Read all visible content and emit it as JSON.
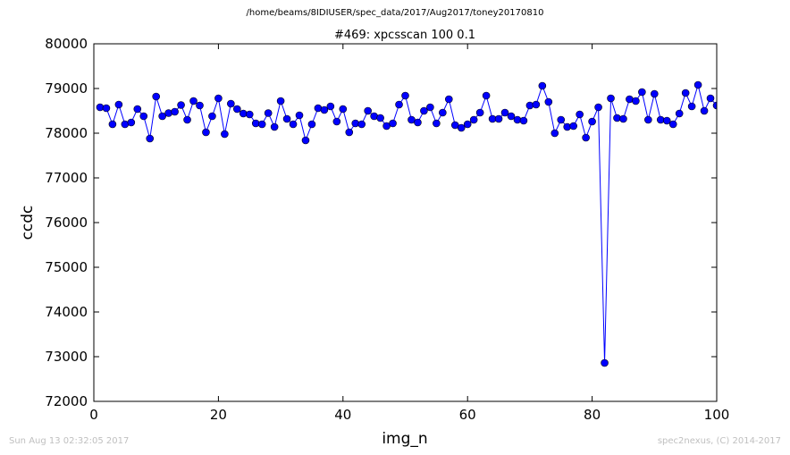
{
  "suptitle": "/home/beams/8IDIUSER/spec_data/2017/Aug2017/toney20170810",
  "footer": {
    "timestamp": "Sun Aug 13 02:32:05 2017",
    "credit": "spec2nexus, (C) 2014-2017"
  },
  "chart_data": {
    "type": "line",
    "title": "#469: xpcsscan 100 0.1",
    "xlabel": "img_n",
    "ylabel": "ccdc",
    "xlim": [
      0,
      100
    ],
    "ylim": [
      72000,
      80000
    ],
    "xticks": [
      0,
      20,
      40,
      60,
      80,
      100
    ],
    "yticks": [
      72000,
      73000,
      74000,
      75000,
      76000,
      77000,
      78000,
      79000,
      80000
    ],
    "grid": false,
    "color": "#0000ff",
    "marker": "circle",
    "x": [
      1,
      2,
      3,
      4,
      5,
      6,
      7,
      8,
      9,
      10,
      11,
      12,
      13,
      14,
      15,
      16,
      17,
      18,
      19,
      20,
      21,
      22,
      23,
      24,
      25,
      26,
      27,
      28,
      29,
      30,
      31,
      32,
      33,
      34,
      35,
      36,
      37,
      38,
      39,
      40,
      41,
      42,
      43,
      44,
      45,
      46,
      47,
      48,
      49,
      50,
      51,
      52,
      53,
      54,
      55,
      56,
      57,
      58,
      59,
      60,
      61,
      62,
      63,
      64,
      65,
      66,
      67,
      68,
      69,
      70,
      71,
      72,
      73,
      74,
      75,
      76,
      77,
      78,
      79,
      80,
      81,
      82,
      83,
      84,
      85,
      86,
      87,
      88,
      89,
      90,
      91,
      92,
      93,
      94,
      95,
      96,
      97,
      98,
      99,
      100
    ],
    "y": [
      78580,
      78560,
      78200,
      78640,
      78200,
      78240,
      78540,
      78380,
      77880,
      78820,
      78380,
      78450,
      78480,
      78630,
      78300,
      78720,
      78620,
      78020,
      78380,
      78780,
      77980,
      78660,
      78540,
      78440,
      78420,
      78220,
      78200,
      78450,
      78140,
      78720,
      78320,
      78200,
      78400,
      77840,
      78200,
      78560,
      78520,
      78600,
      78260,
      78540,
      78020,
      78220,
      78200,
      78500,
      78380,
      78340,
      78160,
      78220,
      78640,
      78840,
      78300,
      78240,
      78500,
      78580,
      78220,
      78460,
      78760,
      78180,
      78120,
      78200,
      78300,
      78460,
      78840,
      78320,
      78320,
      78460,
      78380,
      78300,
      78280,
      78620,
      78640,
      79060,
      78700,
      78000,
      78300,
      78140,
      78160,
      78420,
      77900,
      78260,
      78580,
      72860,
      78780,
      78340,
      78320,
      78760,
      78720,
      78920,
      78300,
      78880,
      78300,
      78280,
      78200,
      78440,
      78900,
      78600,
      79080,
      78500,
      78780,
      78620
    ]
  }
}
